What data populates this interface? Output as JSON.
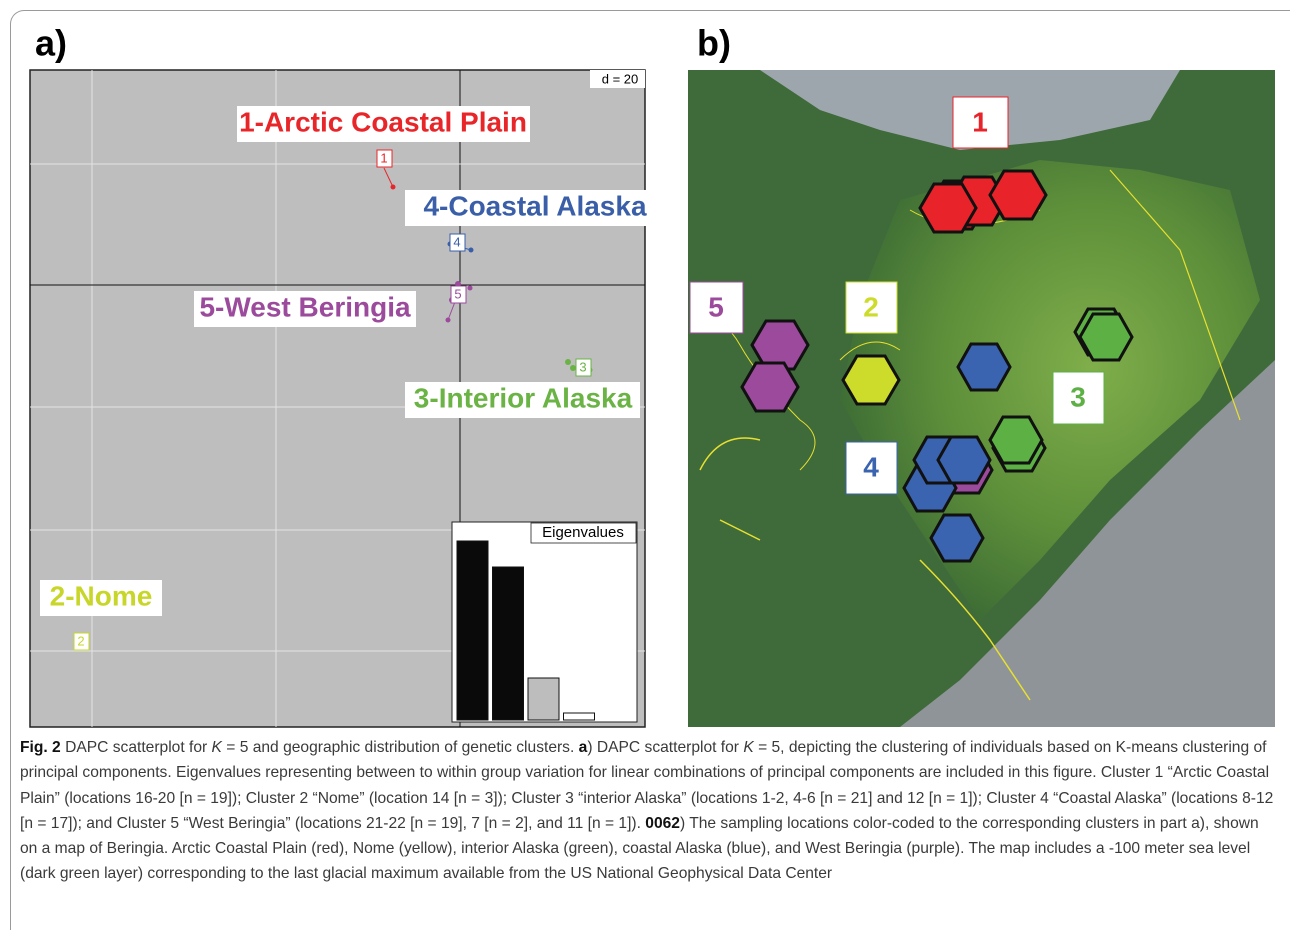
{
  "panel_a": {
    "label": "a)",
    "scale_label": "d = 20",
    "cluster_labels": [
      "1-Arctic Coastal Plain",
      "4-Coastal Alaska",
      "5-West Beringia",
      "3-Interior Alaska",
      "2-Nome"
    ],
    "point_labels": [
      "1",
      "4",
      "5",
      "3",
      "2"
    ],
    "eigen_title": "Eigenvalues",
    "eigenvalues": [
      179,
      153,
      42,
      7
    ]
  },
  "panel_b": {
    "label": "b)",
    "map_labels": [
      "1",
      "5",
      "2",
      "3",
      "4"
    ]
  },
  "caption": {
    "segments": [
      "Fig. 2",
      " DAPC scatterplot for ",
      "K",
      " = 5 and geographic distribution of genetic clusters. ",
      "a",
      ") DAPC scatterplot for ",
      "K",
      " = 5, depicting the clustering of individuals based on K-means clustering of principal components. Eigenvalues representing between to within group variation for linear combinations of principal components are included in this figure. Cluster 1 “Arctic Coastal Plain” (locations 16-20 [n = 19]); Cluster 2 “Nome” (location 14 [n = 3]); Cluster 3 “interior Alaska” (locations 1-2, 4-6 [n = 21] and 12 [n = 1]); Cluster 4 “Coastal Alaska” (locations 8-12 [n = 17]); and Cluster 5 “West Beringia” (locations 21-22 [n = 19], 7 [n = 2], and 11 [n = 1]). ",
      "0062",
      ") The sampling locations color-coded to the corresponding clusters in part a), shown on a map of Beringia. Arctic Coastal Plain (red), Nome (yellow), interior Alaska (green), coastal Alaska (blue), and West Beringia (purple). The map includes a -100 meter sea level (dark green layer) corresponding to the last glacial maximum available from the US National Geophysical Data Center"
    ]
  }
}
